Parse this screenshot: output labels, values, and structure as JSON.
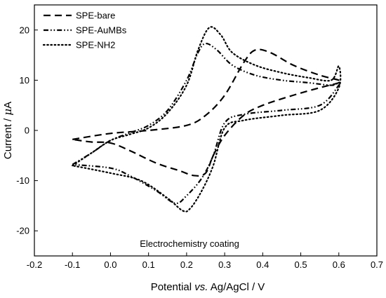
{
  "chart_data": {
    "type": "line",
    "title": "",
    "xlabel": {
      "pre": "Potential ",
      "italic": "vs.",
      "post": " Ag/AgCl / V"
    },
    "ylabel": {
      "pre": "Current / ",
      "greek": "μ",
      "post": "A"
    },
    "xlim": [
      -0.2,
      0.7
    ],
    "ylim": [
      -25,
      25
    ],
    "xticks": [
      "-0.2",
      "-0.1",
      "0.0",
      "0.1",
      "0.2",
      "0.3",
      "0.4",
      "0.5",
      "0.6",
      "0.7"
    ],
    "xtick_values": [
      -0.2,
      -0.1,
      0.0,
      0.1,
      0.2,
      0.3,
      0.4,
      0.5,
      0.6,
      0.7
    ],
    "yticks": [
      "20",
      "10",
      "0",
      "-10",
      "-20"
    ],
    "ytick_values": [
      20,
      10,
      0,
      -10,
      -20
    ],
    "grid": false,
    "legend_position": "top-left",
    "annotation": "Electrochemistry coating",
    "series": [
      {
        "name": "SPE-bare",
        "dash": "dashed",
        "x": [
          -0.1,
          0.0,
          0.1,
          0.2,
          0.25,
          0.3,
          0.35,
          0.38,
          0.42,
          0.48,
          0.55,
          0.6,
          0.6,
          0.55,
          0.48,
          0.4,
          0.35,
          0.3,
          0.27,
          0.25,
          0.22,
          0.18,
          0.12,
          0.05,
          0.0,
          -0.05,
          -0.1
        ],
        "y": [
          -1.8,
          -0.6,
          0.0,
          1.0,
          3.0,
          7.0,
          13.5,
          16.0,
          15.5,
          13.0,
          11.0,
          10.0,
          9.5,
          8.5,
          7.0,
          5.0,
          3.0,
          -1.0,
          -5.0,
          -8.5,
          -9.0,
          -8.0,
          -6.5,
          -4.0,
          -2.5,
          -2.3,
          -1.8
        ]
      },
      {
        "name": "SPE-AuMBs",
        "dash": "dash-dot-dot",
        "x": [
          -0.1,
          -0.05,
          0.0,
          0.05,
          0.1,
          0.15,
          0.2,
          0.23,
          0.25,
          0.28,
          0.32,
          0.38,
          0.45,
          0.52,
          0.58,
          0.6,
          0.6,
          0.55,
          0.45,
          0.35,
          0.3,
          0.27,
          0.24,
          0.2,
          0.17,
          0.12,
          0.05,
          0.0,
          -0.1
        ],
        "y": [
          -6.8,
          -4.5,
          -2.0,
          -0.5,
          1.0,
          4.0,
          10.0,
          15.5,
          17.3,
          16.0,
          13.0,
          11.0,
          10.0,
          9.5,
          9.0,
          9.5,
          9.0,
          5.0,
          4.0,
          3.2,
          1.5,
          -5.0,
          -9.5,
          -13.0,
          -14.5,
          -12.0,
          -9.0,
          -7.5,
          -6.8
        ]
      },
      {
        "name": "SPE-NH2",
        "dash": "dotted",
        "x": [
          -0.1,
          -0.05,
          0.0,
          0.05,
          0.1,
          0.15,
          0.2,
          0.23,
          0.26,
          0.29,
          0.32,
          0.38,
          0.45,
          0.52,
          0.58,
          0.6,
          0.6,
          0.55,
          0.45,
          0.35,
          0.3,
          0.27,
          0.24,
          0.21,
          0.19,
          0.15,
          0.08,
          0.0,
          -0.1
        ],
        "y": [
          -7.0,
          -4.5,
          -2.0,
          -0.8,
          0.5,
          3.5,
          9.0,
          16.0,
          20.5,
          19.0,
          15.5,
          13.0,
          11.5,
          10.5,
          10.0,
          12.8,
          8.5,
          4.0,
          3.0,
          2.0,
          0.5,
          -7.0,
          -12.0,
          -15.5,
          -16.0,
          -13.5,
          -10.0,
          -8.5,
          -7.0
        ]
      }
    ]
  }
}
